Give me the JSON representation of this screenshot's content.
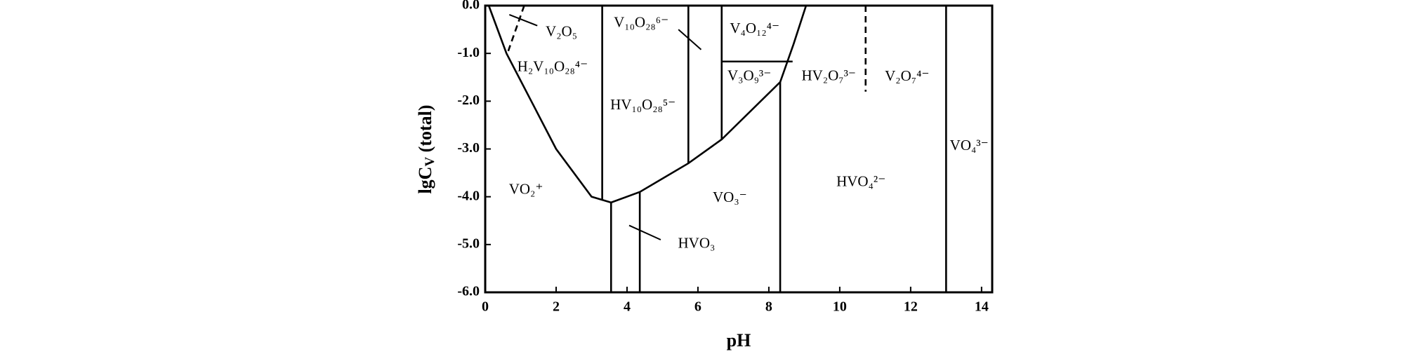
{
  "chart_data": {
    "type": "predominance",
    "xlabel": "pH",
    "ylabel": {
      "main": "lgC",
      "sub": "V",
      "rest": " (total)"
    },
    "xlim": [
      0,
      14.3
    ],
    "ylim": [
      -6,
      0
    ],
    "xticks": [
      0,
      2,
      4,
      6,
      8,
      10,
      12,
      14
    ],
    "yticks": [
      {
        "value": 0,
        "label": "0.0"
      },
      {
        "value": -1,
        "label": "-1.0"
      },
      {
        "value": -2,
        "label": "-2.0"
      },
      {
        "value": -3,
        "label": "-3.0"
      },
      {
        "value": -4,
        "label": "-4.0"
      },
      {
        "value": -5,
        "label": "-5.0"
      },
      {
        "value": -6,
        "label": "-6.0"
      }
    ],
    "color": "#000000",
    "boundaries": [
      {
        "style": "solid",
        "x": [
          0.1,
          0.6,
          1.3,
          2.0,
          3.0,
          3.55,
          4.36,
          5.73,
          6.67,
          8.32,
          8.7,
          9.05
        ],
        "values": [
          0,
          -1,
          -2,
          -3,
          -4,
          -4.12,
          -3.9,
          -3.3,
          -2.8,
          -1.6,
          -0.8,
          0
        ]
      },
      {
        "style": "solid",
        "x": [
          3.3,
          3.3
        ],
        "values": [
          0,
          -4.05
        ]
      },
      {
        "style": "solid",
        "x": [
          3.55,
          3.55
        ],
        "values": [
          -4.12,
          -6
        ]
      },
      {
        "style": "solid",
        "x": [
          4.36,
          4.36
        ],
        "values": [
          -3.9,
          -6
        ]
      },
      {
        "style": "solid",
        "x": [
          5.73,
          5.73
        ],
        "values": [
          0,
          -3.3
        ]
      },
      {
        "style": "solid",
        "x": [
          6.67,
          6.67
        ],
        "values": [
          0,
          -2.8
        ]
      },
      {
        "style": "solid",
        "x": [
          6.67,
          8.67
        ],
        "values": [
          -1.17,
          -1.17
        ]
      },
      {
        "style": "solid",
        "x": [
          8.32,
          8.32
        ],
        "values": [
          -1.6,
          -6
        ]
      },
      {
        "style": "solid",
        "x": [
          13.0,
          13.0
        ],
        "values": [
          0,
          -6
        ]
      },
      {
        "style": "dashed",
        "x": [
          1.1,
          0.65
        ],
        "values": [
          0,
          -0.95
        ]
      },
      {
        "style": "dashed",
        "x": [
          10.73,
          10.73
        ],
        "values": [
          0,
          -1.8
        ]
      }
    ],
    "annotations": [
      {
        "text": "V₂O₅",
        "x": 2.15,
        "y": -0.57
      },
      {
        "text": "H₂V₁₀O₂₈⁴⁻",
        "x": 1.9,
        "y": -1.3
      },
      {
        "text": "V₁₀O₂₈⁶⁻",
        "x": 4.4,
        "y": -0.38
      },
      {
        "text": "HV₁₀O₂₈⁵⁻",
        "x": 4.45,
        "y": -2.1
      },
      {
        "text": "V₄O₁₂⁴⁻",
        "x": 7.6,
        "y": -0.5
      },
      {
        "text": "V₃O₉³⁻",
        "x": 7.45,
        "y": -1.49
      },
      {
        "text": "HV₂O₇³⁻",
        "x": 9.69,
        "y": -1.49
      },
      {
        "text": "V₂O₇⁴⁻",
        "x": 11.9,
        "y": -1.5
      },
      {
        "text": "VO₂⁺",
        "x": 1.15,
        "y": -3.87
      },
      {
        "text": "VO₃⁻",
        "x": 6.9,
        "y": -4.04
      },
      {
        "text": "HVO₄²⁻",
        "x": 10.6,
        "y": -3.71
      },
      {
        "text": "VO₄³⁻",
        "x": 13.65,
        "y": -2.95
      },
      {
        "text": "HVO₃",
        "x": 5.96,
        "y": -5.0
      }
    ]
  }
}
